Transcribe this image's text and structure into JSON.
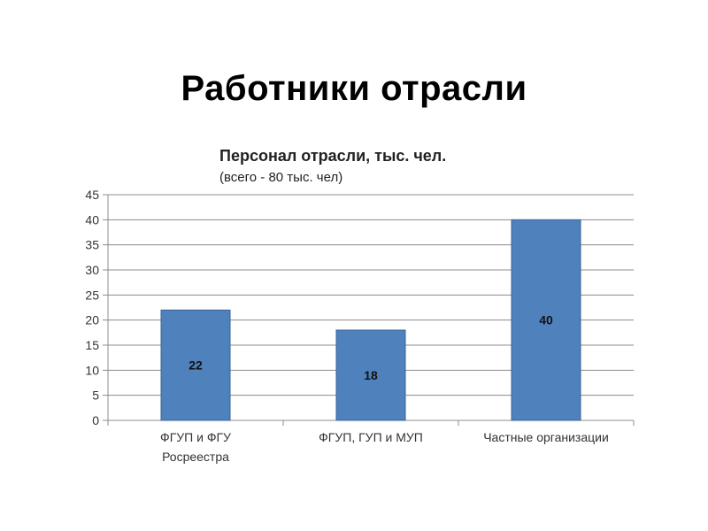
{
  "slide": {
    "title": "Работники отрасли"
  },
  "chart_data": {
    "type": "bar",
    "title": "Персонал отрасли, тыс. чел.",
    "subtitle": "(всего - 80 тыс. чел)",
    "categories": [
      [
        "ФГУП и ФГУ",
        "Росреестра"
      ],
      [
        "ФГУП, ГУП и МУП"
      ],
      [
        "Частные организации"
      ]
    ],
    "values": [
      22,
      18,
      40
    ],
    "data_labels": [
      "22",
      "18",
      "40"
    ],
    "ylim": [
      0,
      45
    ],
    "yticks": [
      0,
      5,
      10,
      15,
      20,
      25,
      30,
      35,
      40,
      45
    ],
    "grid": true,
    "legend": "none",
    "colors": {
      "bar": "#4F81BD",
      "bar_edge": "#3A6496",
      "grid": "#8c8c8c"
    }
  }
}
